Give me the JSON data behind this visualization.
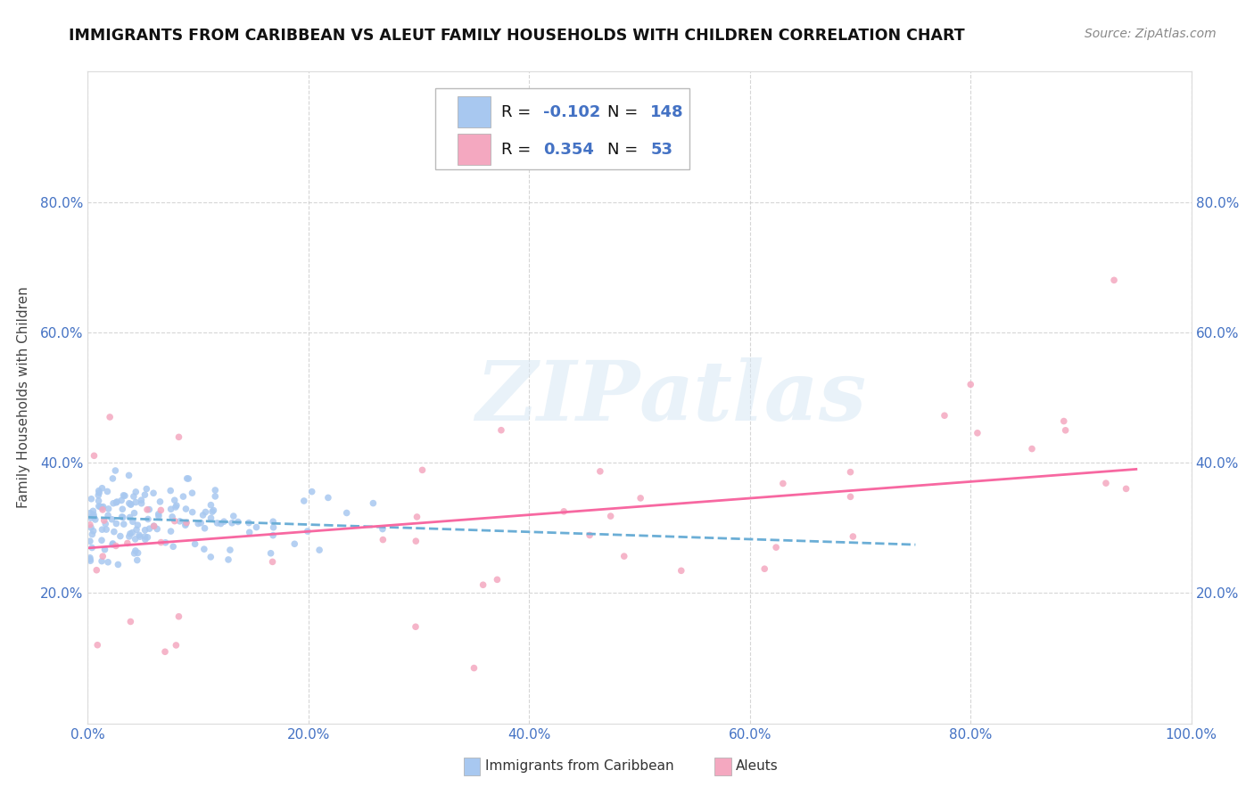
{
  "title": "IMMIGRANTS FROM CARIBBEAN VS ALEUT FAMILY HOUSEHOLDS WITH CHILDREN CORRELATION CHART",
  "source": "Source: ZipAtlas.com",
  "ylabel": "Family Households with Children",
  "legend_label_1": "Immigrants from Caribbean",
  "legend_label_2": "Aleuts",
  "r1": -0.102,
  "n1": 148,
  "r2": 0.354,
  "n2": 53,
  "color1": "#a8c8f0",
  "color2": "#f4a8c0",
  "line_color1": "#6baed6",
  "line_color2": "#f768a1",
  "xlim": [
    0.0,
    1.0
  ],
  "ylim": [
    0.0,
    1.0
  ],
  "xticks": [
    0.0,
    0.2,
    0.4,
    0.6,
    0.8,
    1.0
  ],
  "yticks": [
    0.2,
    0.4,
    0.6,
    0.8
  ],
  "xticklabels": [
    "0.0%",
    "20.0%",
    "40.0%",
    "60.0%",
    "80.0%",
    "100.0%"
  ],
  "yticklabels": [
    "20.0%",
    "40.0%",
    "60.0%",
    "80.0%"
  ],
  "background_color": "#ffffff",
  "grid_color": "#cccccc",
  "tick_color": "#4472c4",
  "watermark": "ZIPatlas"
}
